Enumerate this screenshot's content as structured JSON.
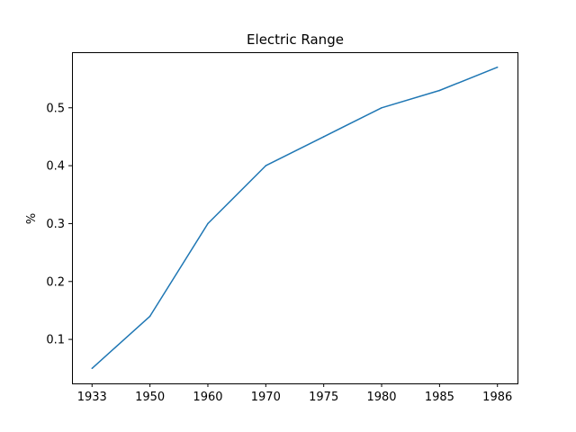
{
  "chart_data": {
    "type": "line",
    "title": "Electric Range",
    "xlabel": "",
    "ylabel": "%",
    "categories": [
      "1933",
      "1950",
      "1960",
      "1970",
      "1975",
      "1980",
      "1985",
      "1986"
    ],
    "series": [
      {
        "values": [
          0.05,
          0.14,
          0.3,
          0.4,
          0.45,
          0.5,
          0.53,
          0.57
        ],
        "color": "#1f77b4"
      }
    ],
    "yticks": [
      0.1,
      0.2,
      0.3,
      0.4,
      0.5
    ],
    "ylim": [
      0.024,
      0.596
    ],
    "grid": false,
    "legend": "none"
  }
}
